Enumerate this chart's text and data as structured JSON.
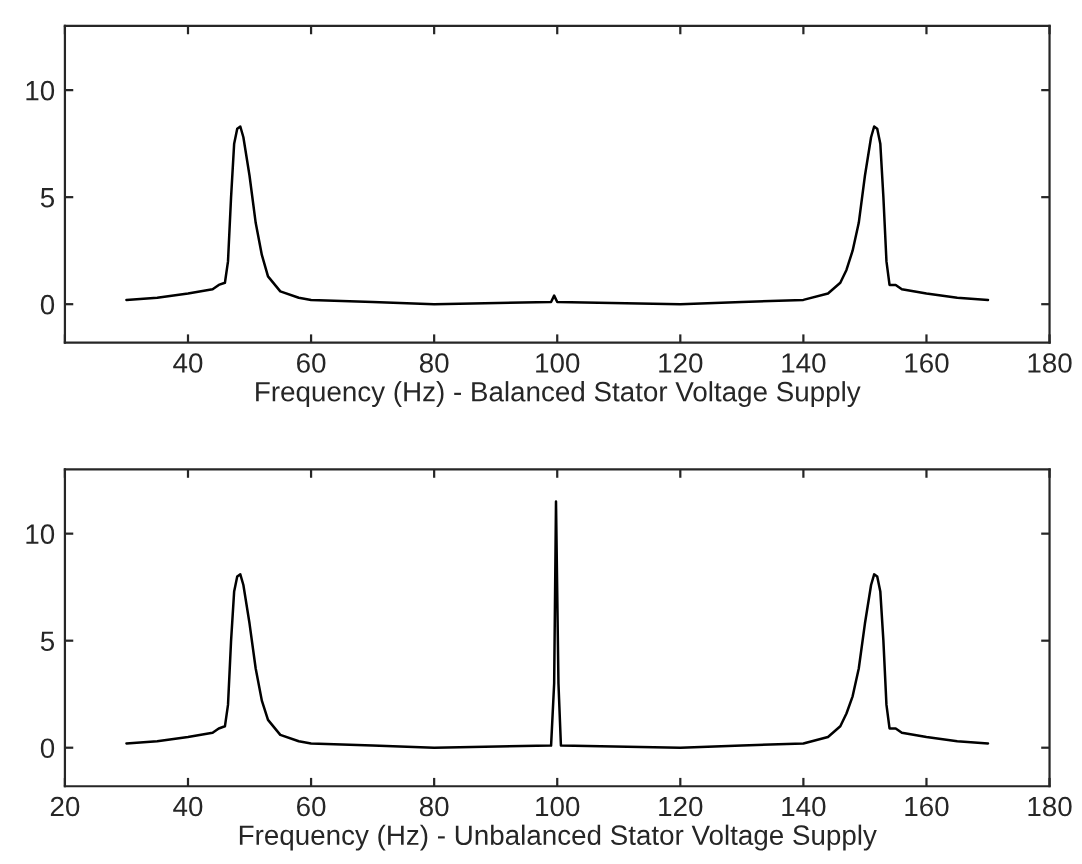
{
  "chart_data": [
    {
      "type": "line",
      "xlabel": "Frequency (Hz) - Balanced Stator Voltage Supply",
      "xlim": [
        20,
        180
      ],
      "xticks": [
        {
          "value": 20,
          "label": null
        },
        40,
        60,
        80,
        100,
        120,
        140,
        160,
        180
      ],
      "ylim": [
        -1.8,
        13
      ],
      "yticks": [
        0,
        5,
        10
      ],
      "grid": false,
      "legend": false,
      "series": [
        {
          "color": "#000000",
          "x": [
            30,
            35,
            40,
            44,
            45,
            46,
            46.5,
            47,
            47.5,
            48,
            48.5,
            49,
            50,
            51,
            52,
            53,
            55,
            58,
            60,
            70,
            80,
            99,
            99.5,
            100,
            120,
            130,
            140,
            144,
            146,
            147,
            148,
            149,
            150,
            151,
            151.5,
            152,
            152.5,
            153,
            153.5,
            154,
            155,
            156,
            160,
            165,
            170
          ],
          "values": [
            0.2,
            0.3,
            0.5,
            0.7,
            0.9,
            1.0,
            2,
            5,
            7.5,
            8.2,
            8.3,
            7.8,
            6,
            3.8,
            2.3,
            1.3,
            0.6,
            0.3,
            0.2,
            0.1,
            0,
            0.1,
            0.4,
            0.1,
            0,
            0.1,
            0.2,
            0.5,
            1.0,
            1.6,
            2.5,
            3.8,
            6,
            7.8,
            8.3,
            8.2,
            7.5,
            5,
            2,
            0.9,
            0.9,
            0.7,
            0.5,
            0.3,
            0.2
          ]
        }
      ]
    },
    {
      "type": "line",
      "xlabel": "Frequency (Hz) - Unbalanced Stator Voltage Supply",
      "xlim": [
        20,
        180
      ],
      "xticks": [
        20,
        40,
        60,
        80,
        100,
        120,
        140,
        160,
        180
      ],
      "ylim": [
        -1.8,
        13
      ],
      "yticks": [
        0,
        5,
        10
      ],
      "grid": false,
      "legend": false,
      "series": [
        {
          "color": "#000000",
          "x": [
            30,
            35,
            40,
            44,
            45,
            46,
            46.5,
            47,
            47.5,
            48,
            48.5,
            49,
            50,
            51,
            52,
            53,
            55,
            58,
            60,
            70,
            80,
            99,
            99.5,
            99.8,
            100.2,
            100.6,
            120,
            130,
            140,
            144,
            146,
            147,
            148,
            149,
            150,
            151,
            151.5,
            152,
            152.5,
            153,
            153.5,
            154,
            155,
            156,
            160,
            165,
            170
          ],
          "values": [
            0.2,
            0.3,
            0.5,
            0.7,
            0.9,
            1.0,
            2,
            5,
            7.3,
            8.0,
            8.1,
            7.6,
            5.8,
            3.7,
            2.2,
            1.3,
            0.6,
            0.3,
            0.2,
            0.1,
            0,
            0.1,
            3,
            11.5,
            3,
            0.1,
            0,
            0.1,
            0.2,
            0.5,
            1.0,
            1.6,
            2.4,
            3.7,
            5.8,
            7.6,
            8.1,
            8.0,
            7.3,
            5,
            2,
            0.9,
            0.9,
            0.7,
            0.5,
            0.3,
            0.2
          ]
        }
      ]
    }
  ]
}
